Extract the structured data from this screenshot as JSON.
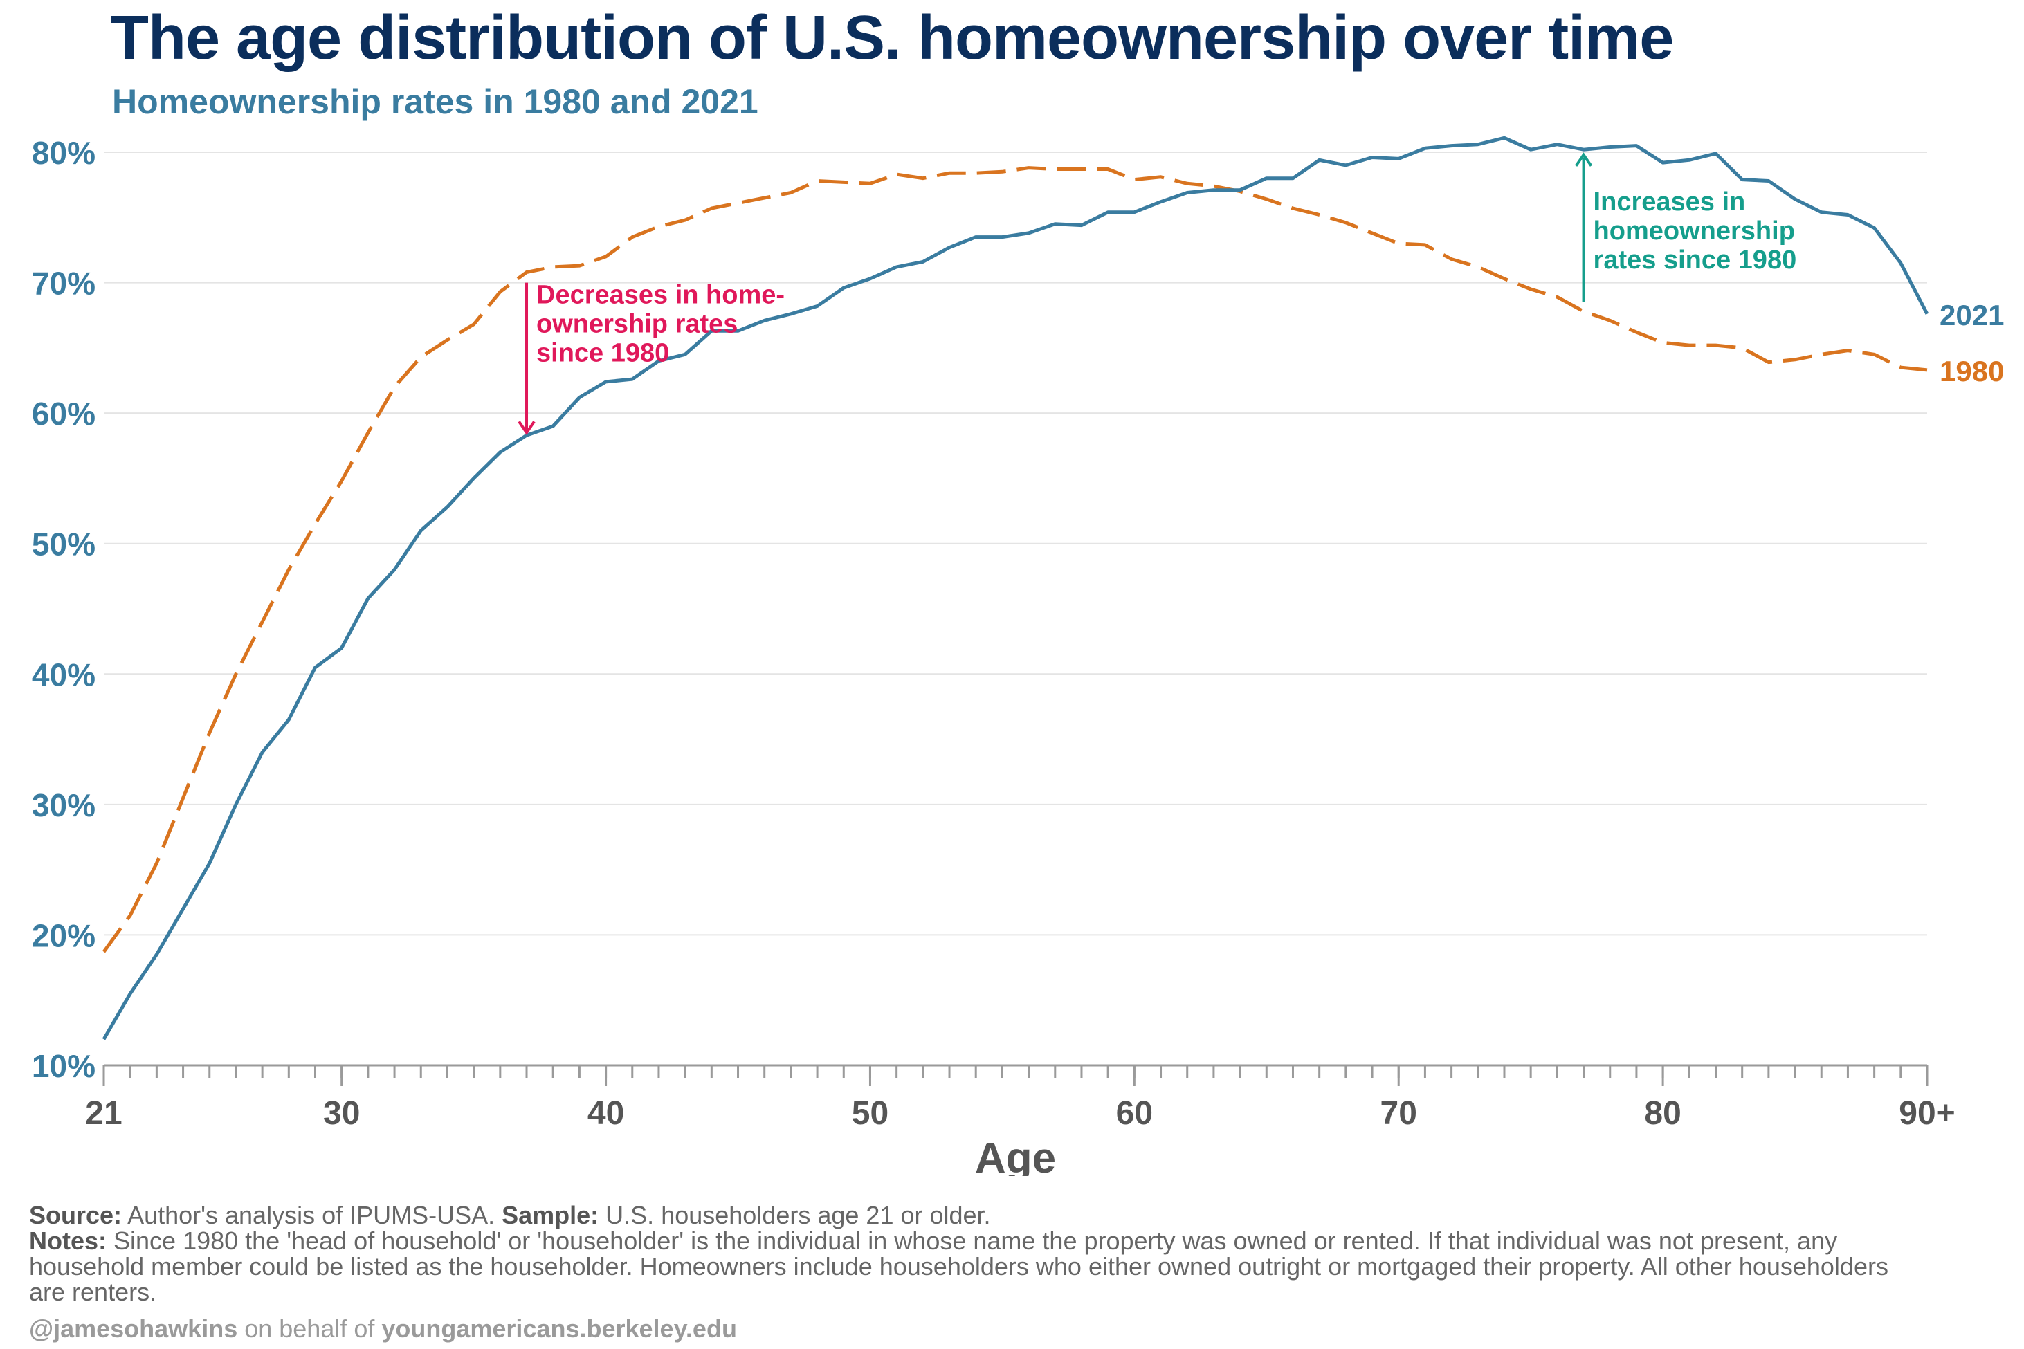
{
  "header": {
    "title": "The age distribution of U.S. homeownership over time",
    "subtitle": "Homeownership rates in 1980 and 2021"
  },
  "colors": {
    "series_2021": "#3a7ca0",
    "series_1980": "#d9741f",
    "decrease_annotation": "#e0185a",
    "increase_annotation": "#159e8c",
    "title": "#0b2e5c",
    "axis_text": "#555555"
  },
  "chart_data": {
    "type": "line",
    "title": "The age distribution of U.S. homeownership over time",
    "subtitle": "Homeownership rates in 1980 and 2021",
    "xlabel": "Age",
    "ylabel": "",
    "x_ticks": [
      "21",
      "30",
      "40",
      "50",
      "60",
      "70",
      "80",
      "90+"
    ],
    "y_ticks": [
      "10%",
      "20%",
      "30%",
      "40%",
      "50%",
      "60%",
      "70%",
      "80%"
    ],
    "xlim": [
      21,
      90
    ],
    "ylim": [
      10,
      80
    ],
    "grid": "horizontal",
    "legend": "direct labels at right end of lines",
    "x": [
      21,
      22,
      23,
      24,
      25,
      26,
      27,
      28,
      29,
      30,
      31,
      32,
      33,
      34,
      35,
      36,
      37,
      38,
      39,
      40,
      41,
      42,
      43,
      44,
      45,
      46,
      47,
      48,
      49,
      50,
      51,
      52,
      53,
      54,
      55,
      56,
      57,
      58,
      59,
      60,
      61,
      62,
      63,
      64,
      65,
      66,
      67,
      68,
      69,
      70,
      71,
      72,
      73,
      74,
      75,
      76,
      77,
      78,
      79,
      80,
      81,
      82,
      83,
      84,
      85,
      86,
      87,
      88,
      89,
      90
    ],
    "series": [
      {
        "name": "2021",
        "style": "solid",
        "values": [
          12,
          15.5,
          18.5,
          22,
          25.5,
          30,
          34,
          36.5,
          40.5,
          42,
          45.8,
          48,
          51,
          52.8,
          55,
          57,
          58.3,
          59,
          61.2,
          62.4,
          62.6,
          64,
          64.5,
          66.3,
          66.3,
          67.1,
          67.6,
          68.2,
          69.6,
          70.3,
          71.2,
          71.6,
          72.7,
          73.5,
          73.5,
          73.8,
          74.5,
          74.4,
          75.4,
          75.4,
          76.2,
          76.9,
          77.1,
          77.1,
          78,
          78,
          79.4,
          79,
          79.6,
          79.5,
          80.3,
          80.5,
          80.6,
          81.1,
          80.2,
          80.6,
          80.2,
          80.4,
          80.5,
          79.2,
          79.4,
          79.9,
          77.9,
          77.8,
          76.4,
          75.4,
          75.2,
          74.2,
          71.5,
          67.6
        ]
      },
      {
        "name": "1980",
        "style": "dashed",
        "values": [
          18.7,
          21.5,
          25.5,
          30.5,
          35.5,
          40,
          44,
          48,
          51.5,
          54.8,
          58.5,
          62,
          64.3,
          65.6,
          66.8,
          69.3,
          70.8,
          71.2,
          71.3,
          72,
          73.5,
          74.3,
          74.8,
          75.7,
          76.1,
          76.5,
          76.9,
          77.8,
          77.7,
          77.6,
          78.3,
          78,
          78.4,
          78.4,
          78.5,
          78.8,
          78.7,
          78.7,
          78.7,
          77.9,
          78.1,
          77.6,
          77.4,
          77,
          76.4,
          75.7,
          75.2,
          74.6,
          73.8,
          73,
          72.9,
          71.8,
          71.2,
          70.3,
          69.5,
          68.9,
          67.8,
          67.1,
          66.2,
          65.4,
          65.2,
          65.2,
          65,
          63.9,
          64.1,
          64.5,
          64.8,
          64.5,
          63.5,
          63.3
        ]
      }
    ],
    "annotations": [
      {
        "text": [
          "Decreases in home-",
          "ownership rates",
          "since 1980"
        ],
        "x": 37,
        "from": 70,
        "to": 58.5
      },
      {
        "text": [
          "Increases in",
          "homeownership",
          "rates since 1980"
        ],
        "x": 77,
        "from": 68.5,
        "to": 79.8
      }
    ]
  },
  "footer": {
    "source_label": "Source:",
    "source_text": " Author's analysis of IPUMS-USA. ",
    "sample_label": "Sample:",
    "sample_text": " U.S. householders age 21 or older.",
    "notes_label": "Notes:",
    "notes_text": " Since 1980 the 'head of household' or 'householder' is the individual in whose name the property was owned or rented. If that individual was not present, any household member could be listed as the householder. Homeowners include householders who either owned outright or mortgaged their property. All other householders are renters.",
    "credit_handle": "@jamesohawkins",
    "credit_middle": " on behalf of ",
    "credit_site": "youngamericans.berkeley.edu"
  }
}
